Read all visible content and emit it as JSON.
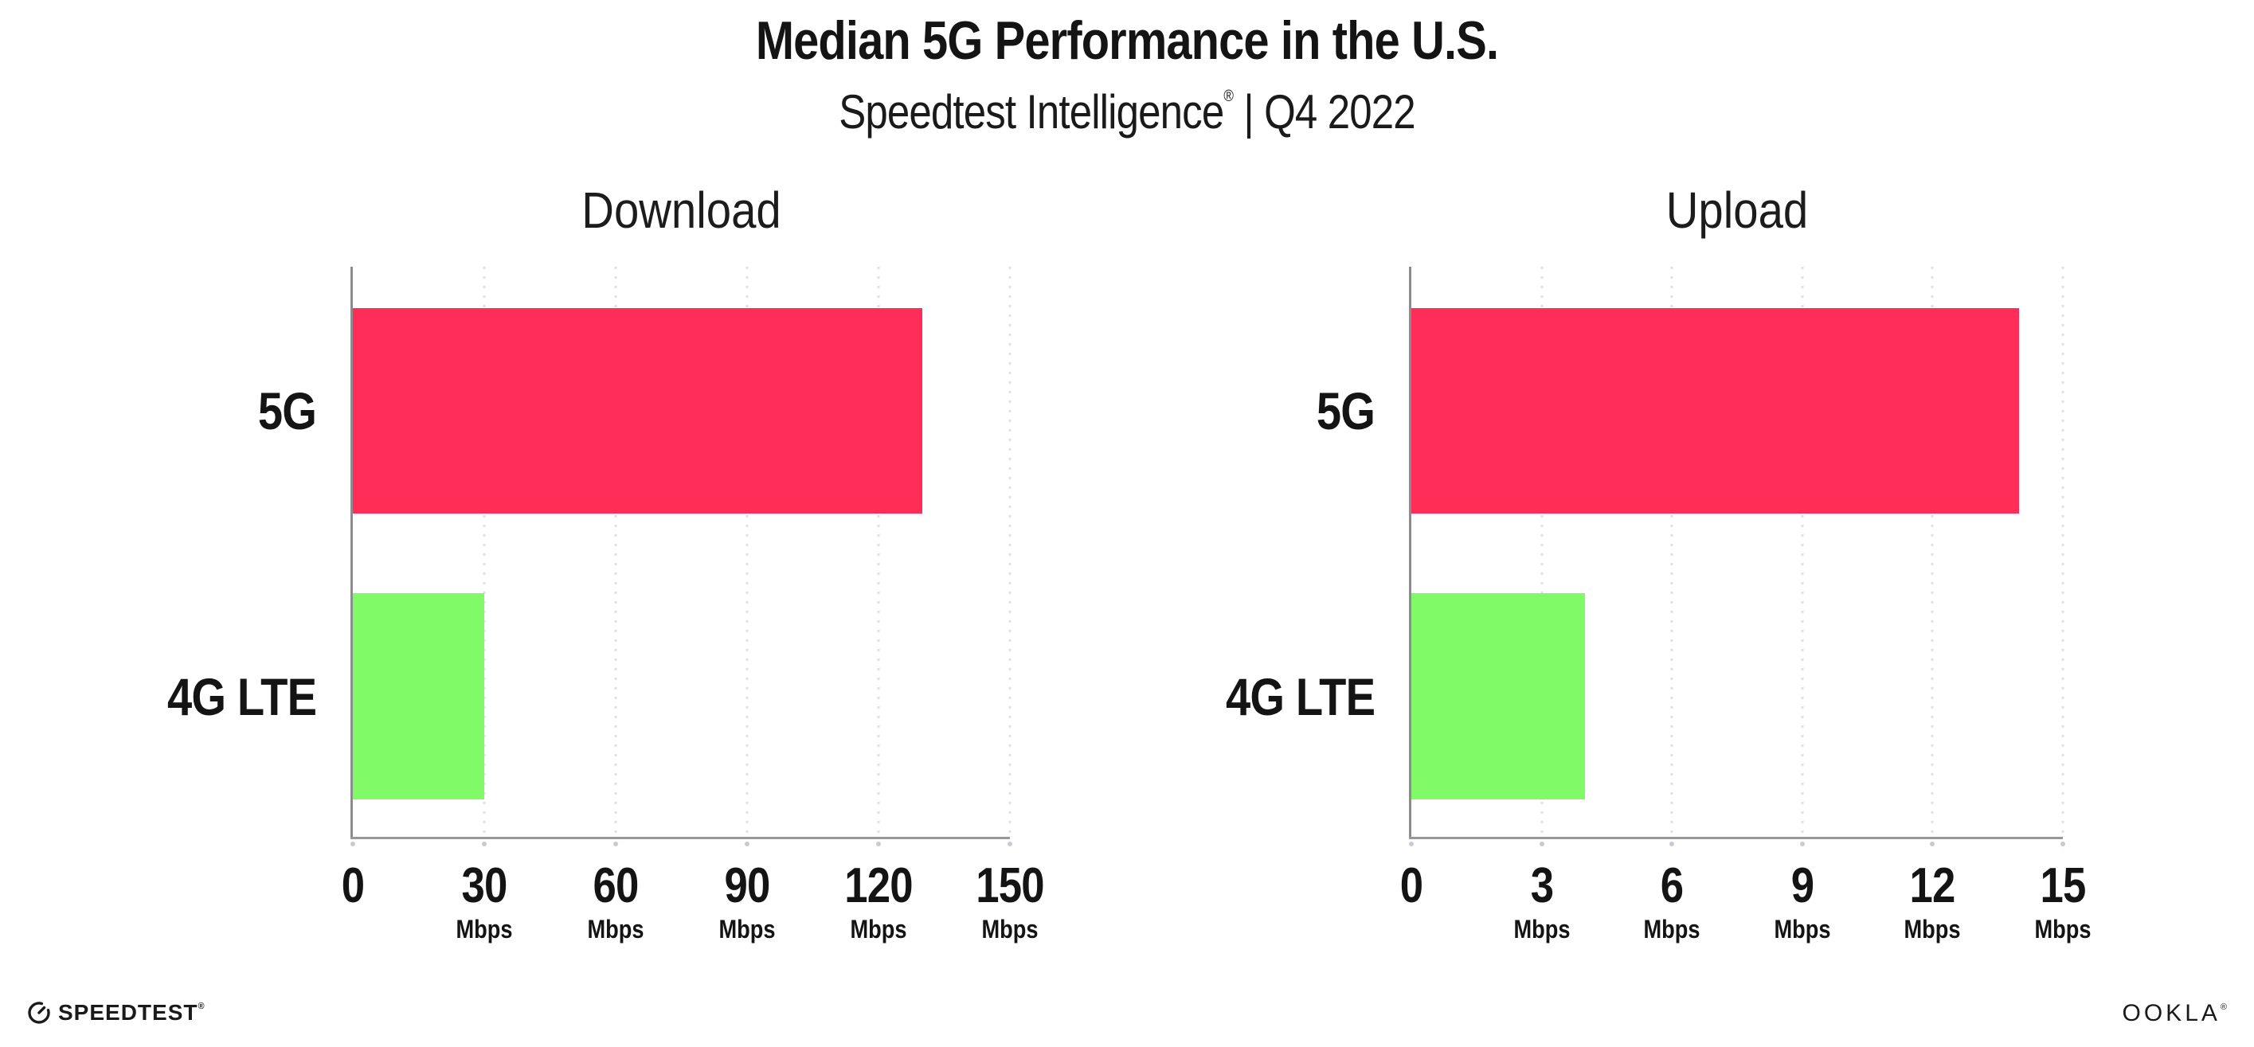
{
  "header": {
    "title": "Median 5G Performance in the U.S.",
    "subtitle_brand": "Speedtest Intelligence",
    "subtitle_reg": "®",
    "subtitle_rest": " | Q4 2022"
  },
  "chart_data": [
    {
      "type": "bar",
      "orientation": "horizontal",
      "title": "Download",
      "unit": "Mbps",
      "categories": [
        "5G",
        "4G LTE"
      ],
      "values": [
        130,
        30
      ],
      "xlim": [
        0,
        150
      ],
      "xticks": [
        "0",
        "30",
        "60",
        "90",
        "120",
        "150"
      ],
      "grid": "vertical-dotted",
      "legend": "none"
    },
    {
      "type": "bar",
      "orientation": "horizontal",
      "title": "Upload",
      "unit": "Mbps",
      "categories": [
        "5G",
        "4G LTE"
      ],
      "values": [
        14,
        4
      ],
      "xlim": [
        0,
        15
      ],
      "xticks": [
        "0",
        "3",
        "6",
        "9",
        "12",
        "15"
      ],
      "grid": "vertical-dotted",
      "legend": "none"
    }
  ],
  "colors": {
    "bar_5g": "#FF2D58",
    "bar_4g_lte": "#80FA66",
    "axis": "#98989c",
    "gridline": "#dfe0ea",
    "tick": "#c9cad4",
    "text": "#141414",
    "background": "#ffffff"
  },
  "footer": {
    "speedtest_label": "SPEEDTEST",
    "speedtest_reg": "®",
    "ookla_label": "OOKLA",
    "ookla_reg": "®"
  }
}
